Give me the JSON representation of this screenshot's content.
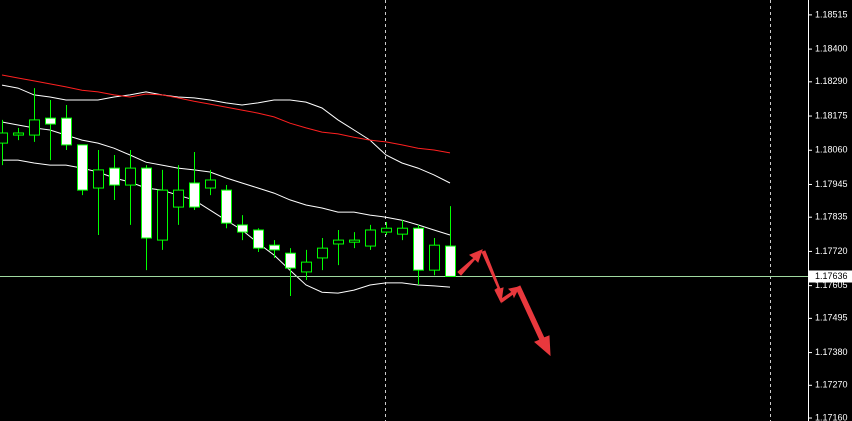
{
  "chart_data": {
    "type": "candlestick",
    "categories": [
      null,
      null,
      null,
      null,
      null,
      null,
      null,
      null,
      null,
      null,
      null,
      null,
      null,
      null,
      null,
      null,
      null,
      null,
      null,
      null,
      null,
      null,
      null,
      null,
      null,
      null,
      null,
      null,
      null
    ],
    "open": [
      1.18084,
      1.18111,
      1.18111,
      1.18168,
      1.18168,
      1.18078,
      1.17933,
      1.18,
      1.17943,
      1.18,
      1.17758,
      1.17869,
      1.1795,
      1.17933,
      1.17926,
      1.17809,
      1.17792,
      1.17741,
      1.17714,
      1.17651,
      1.17698,
      1.17745,
      1.17751,
      1.17738,
      1.17785,
      1.17778,
      1.17798,
      1.17657,
      1.17738
    ],
    "high": [
      1.18162,
      1.18135,
      1.18269,
      1.18229,
      1.18212,
      1.18078,
      1.18061,
      1.18044,
      1.18061,
      1.1801,
      1.17994,
      1.1801,
      1.18054,
      1.17994,
      1.17943,
      1.17842,
      1.17798,
      1.17758,
      1.17731,
      1.17725,
      1.17765,
      1.17792,
      1.17785,
      1.17809,
      1.17819,
      1.17825,
      1.17809,
      1.17765,
      1.17872
    ],
    "low": [
      1.1801,
      1.18094,
      1.18088,
      1.18027,
      1.18061,
      1.17909,
      1.17775,
      1.17893,
      1.17809,
      1.17657,
      1.17725,
      1.17809,
      1.17859,
      1.17909,
      1.17798,
      1.17758,
      1.17718,
      1.17698,
      1.1757,
      1.17624,
      1.17657,
      1.17674,
      1.17731,
      1.17725,
      1.17775,
      1.17758,
      1.17607,
      1.1764,
      1.1764
    ],
    "close": [
      1.18118,
      1.18118,
      1.18162,
      1.18148,
      1.18078,
      1.17926,
      1.17994,
      1.17943,
      1.18,
      1.17765,
      1.17926,
      1.17926,
      1.17869,
      1.1796,
      1.17815,
      1.17785,
      1.17731,
      1.17725,
      1.17664,
      1.17684,
      1.17731,
      1.17758,
      1.17758,
      1.17792,
      1.17798,
      1.17798,
      1.17657,
      1.17741,
      1.17636
    ],
    "bull_color": "#000000",
    "bear_color": "#ffffff",
    "wick_color": "#00ff00",
    "lines": [
      {
        "color": "#ffffff",
        "values": [
          1.18279,
          1.18269,
          1.18246,
          1.18239,
          1.18229,
          1.18229,
          1.18229,
          1.18239,
          1.18246,
          1.18256,
          1.18246,
          1.18239,
          1.18236,
          1.18229,
          1.18219,
          1.18212,
          1.18219,
          1.18229,
          1.18229,
          1.18222,
          1.18202,
          1.18162,
          1.18128,
          1.18094,
          1.18044,
          1.18017,
          1.18,
          1.17977,
          1.1795
        ]
      },
      {
        "color": "#ffffff",
        "values": [
          1.18155,
          1.18145,
          1.18135,
          1.18128,
          1.18111,
          1.18094,
          1.18084,
          1.18067,
          1.18044,
          1.1802,
          1.1801,
          1.18,
          1.17994,
          1.17987,
          1.17967,
          1.1795,
          1.17933,
          1.17916,
          1.17893,
          1.17876,
          1.17866,
          1.17852,
          1.17852,
          1.17842,
          1.17835,
          1.17825,
          1.17809,
          1.17792,
          1.17775
        ]
      },
      {
        "color": "#ffffff",
        "values": [
          1.18027,
          1.18027,
          1.18017,
          1.1801,
          1.1801,
          1.18,
          1.17987,
          1.17967,
          1.17953,
          1.17933,
          1.17926,
          1.17909,
          1.17893,
          1.17859,
          1.17825,
          1.17792,
          1.17748,
          1.17708,
          1.17657,
          1.17607,
          1.17583,
          1.1758,
          1.1759,
          1.17607,
          1.17614,
          1.17614,
          1.17607,
          1.17604,
          1.176
        ]
      },
      {
        "color": "#ff2020",
        "values": [
          1.18313,
          1.18303,
          1.18293,
          1.18283,
          1.18273,
          1.18262,
          1.18256,
          1.18246,
          1.18239,
          1.18249,
          1.18246,
          1.18236,
          1.18225,
          1.18215,
          1.18205,
          1.18195,
          1.18185,
          1.18172,
          1.18151,
          1.18135,
          1.18121,
          1.18115,
          1.18104,
          1.18094,
          1.18088,
          1.18078,
          1.18067,
          1.18061,
          1.18051
        ]
      }
    ],
    "current_price": 1.17636,
    "current_price_color": "#9fd89f",
    "ylim": [
      1.1715,
      1.18565
    ],
    "yticks": [
      1.18515,
      {
        "value": 1.184,
        "label": "1.18400"
      },
      {
        "value": 1.1829,
        "label": "1.18290"
      },
      1.18175,
      {
        "value": 1.1806,
        "label": "1.18060"
      },
      1.17945,
      1.17835,
      {
        "value": 1.1772,
        "label": "1.17720"
      },
      1.17605,
      1.17495,
      {
        "value": 1.1738,
        "label": "1.17380"
      },
      {
        "value": 1.1727,
        "label": "1.17270"
      },
      {
        "value": 1.1716,
        "label": "1.17160"
      }
    ]
  }
}
